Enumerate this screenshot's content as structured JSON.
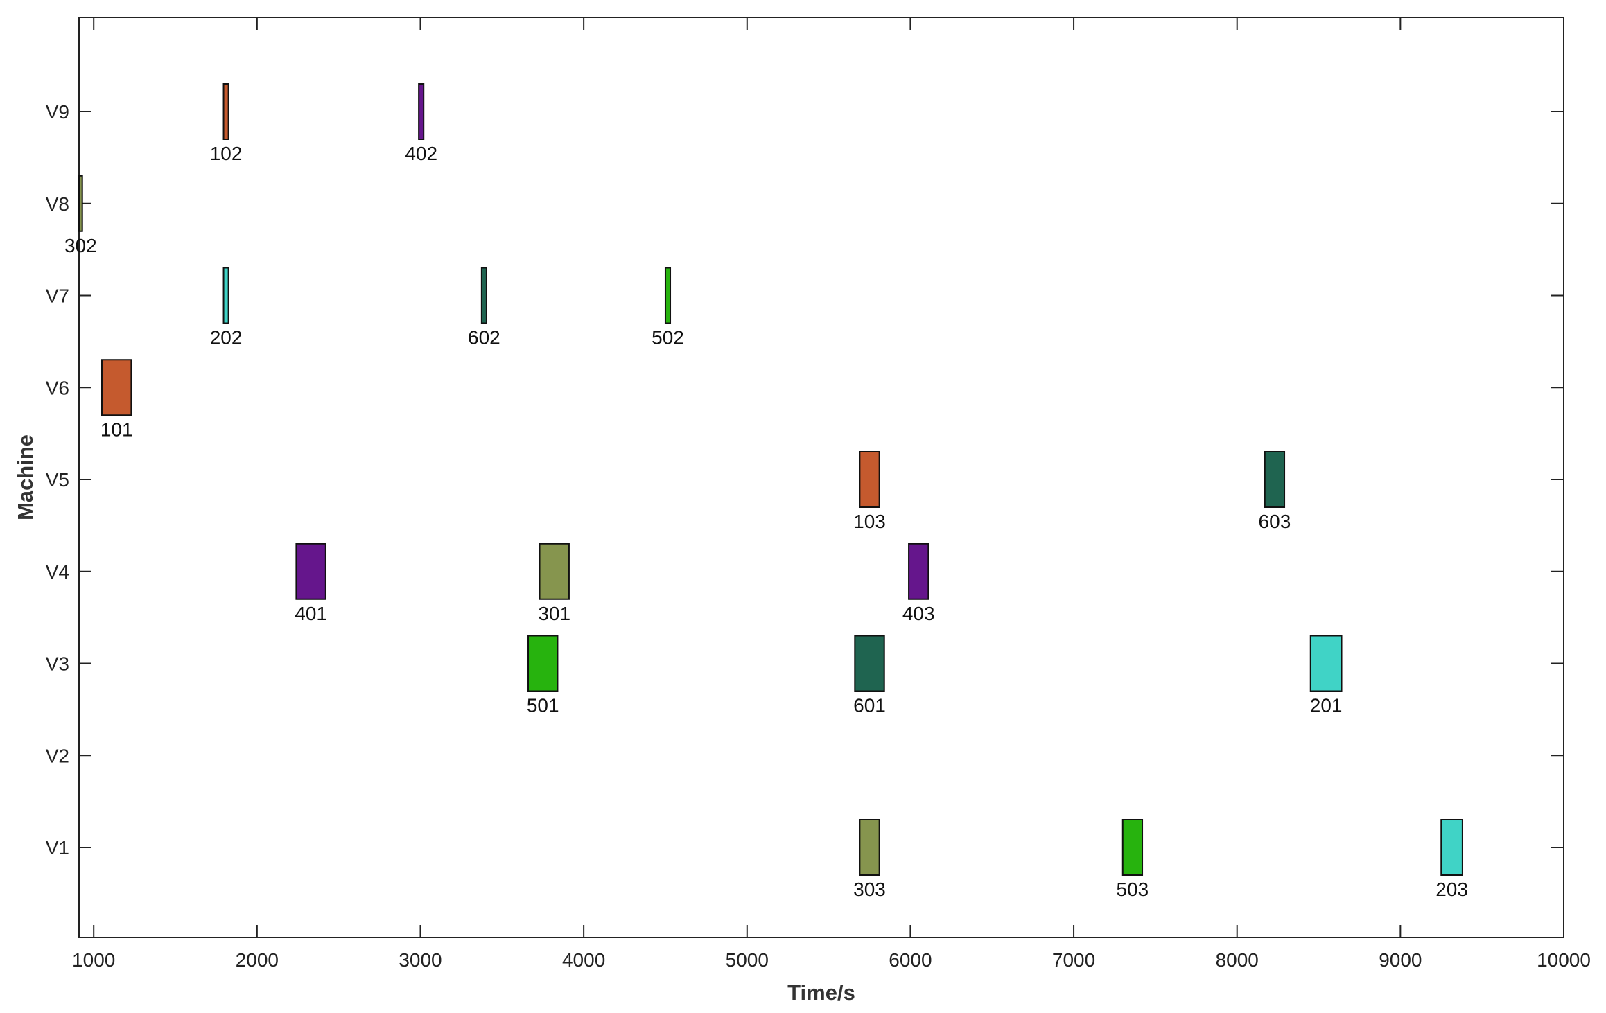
{
  "chart_data": {
    "type": "gantt",
    "title": "",
    "xlabel": "Time/s",
    "ylabel": "Machine",
    "xlim": [
      910,
      10000
    ],
    "xticks": [
      1000,
      2000,
      3000,
      4000,
      5000,
      6000,
      7000,
      8000,
      9000,
      10000
    ],
    "machines": [
      "V1",
      "V2",
      "V3",
      "V4",
      "V5",
      "V6",
      "V7",
      "V8",
      "V9"
    ],
    "grid": false,
    "legend": "none",
    "tasks": [
      {
        "label": "101",
        "machine": "V6",
        "start": 1050,
        "end": 1230,
        "color": "#c55a2e"
      },
      {
        "label": "102",
        "machine": "V9",
        "start": 1795,
        "end": 1825,
        "color": "#c55a2e"
      },
      {
        "label": "103",
        "machine": "V5",
        "start": 5690,
        "end": 5810,
        "color": "#c55a2e"
      },
      {
        "label": "201",
        "machine": "V3",
        "start": 8450,
        "end": 8640,
        "color": "#40d3c6"
      },
      {
        "label": "202",
        "machine": "V7",
        "start": 1795,
        "end": 1825,
        "color": "#40d3c6"
      },
      {
        "label": "203",
        "machine": "V1",
        "start": 9250,
        "end": 9380,
        "color": "#40d3c6"
      },
      {
        "label": "301",
        "machine": "V4",
        "start": 3730,
        "end": 3910,
        "color": "#86954e"
      },
      {
        "label": "302",
        "machine": "V8",
        "start": 910,
        "end": 930,
        "color": "#86954e"
      },
      {
        "label": "303",
        "machine": "V1",
        "start": 5690,
        "end": 5810,
        "color": "#86954e"
      },
      {
        "label": "401",
        "machine": "V4",
        "start": 2240,
        "end": 2420,
        "color": "#65168c"
      },
      {
        "label": "402",
        "machine": "V9",
        "start": 2990,
        "end": 3020,
        "color": "#65168c"
      },
      {
        "label": "403",
        "machine": "V4",
        "start": 5990,
        "end": 6110,
        "color": "#65168c"
      },
      {
        "label": "501",
        "machine": "V3",
        "start": 3660,
        "end": 3840,
        "color": "#27b30e"
      },
      {
        "label": "502",
        "machine": "V7",
        "start": 4500,
        "end": 4530,
        "color": "#27b30e"
      },
      {
        "label": "503",
        "machine": "V1",
        "start": 7300,
        "end": 7420,
        "color": "#27b30e"
      },
      {
        "label": "601",
        "machine": "V3",
        "start": 5660,
        "end": 5840,
        "color": "#1f6450"
      },
      {
        "label": "602",
        "machine": "V7",
        "start": 3375,
        "end": 3405,
        "color": "#1f6450"
      },
      {
        "label": "603",
        "machine": "V5",
        "start": 8170,
        "end": 8290,
        "color": "#1f6450"
      }
    ]
  }
}
